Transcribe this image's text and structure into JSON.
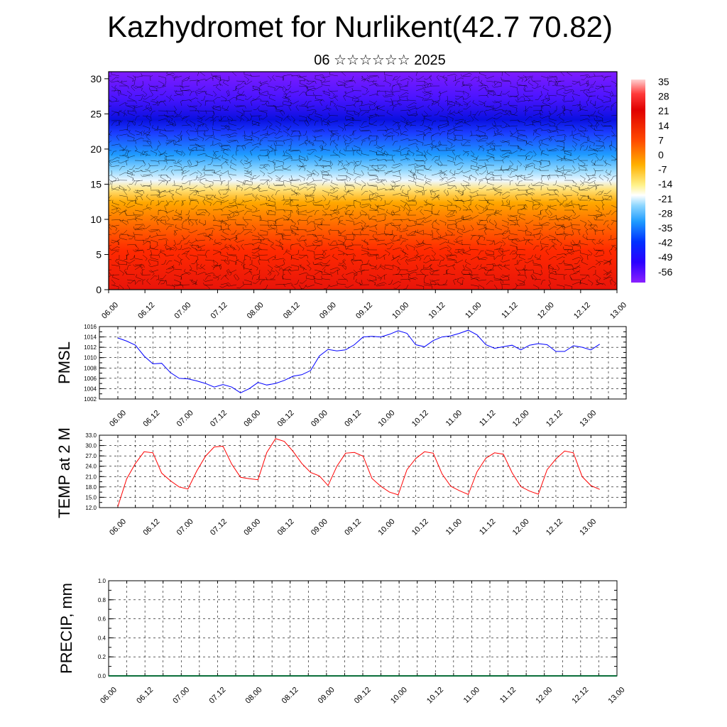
{
  "header": {
    "title": "Kazhydromet for Nurlikent(42.7 70.82)",
    "subtitle": "06 ☆☆☆☆☆☆ 2025"
  },
  "time_ticks": [
    "06.00",
    "06.12",
    "07.00",
    "07.12",
    "08.00",
    "08.12",
    "09.00",
    "09.12",
    "10.00",
    "10.12",
    "11.00",
    "11.12",
    "12.00",
    "12.12",
    "13.00"
  ],
  "chart_data": [
    {
      "type": "heatmap",
      "title": "",
      "variable": "temperature cross-section with wind barbs",
      "x": [
        "06.00",
        "06.12",
        "07.00",
        "07.12",
        "08.00",
        "08.12",
        "09.00",
        "09.12",
        "10.00",
        "10.12",
        "11.00",
        "11.12",
        "12.00",
        "12.12",
        "13.00"
      ],
      "ylabel": "",
      "ylim": [
        0,
        31
      ],
      "yticks": [
        0,
        5,
        10,
        15,
        20,
        25,
        30
      ],
      "colorbar_labels": [
        "35",
        "28",
        "21",
        "14",
        "7",
        "0",
        "-7",
        "-14",
        "-21",
        "-28",
        "-35",
        "-42",
        "-49",
        "-56"
      ],
      "colorbar_range": [
        -63,
        42
      ],
      "colormap": [
        "#7f00ff",
        "#2a00ff",
        "#0040ff",
        "#1e9bff",
        "#9fe2ff",
        "#ffffff",
        "#fff18a",
        "#ffb000",
        "#ff5a00",
        "#ff1a00",
        "#d40000",
        "#ff9a9a"
      ],
      "grid": false
    },
    {
      "type": "line",
      "ylabel": "PMSL",
      "ylim": [
        1002,
        1016
      ],
      "yticks": [
        "1002",
        "1004",
        "1006",
        "1008",
        "1010",
        "1012",
        "1014",
        "1016"
      ],
      "color": "#0000ff",
      "grid": true,
      "series": [
        {
          "x_hours": [
            0,
            3,
            6,
            9,
            12,
            15,
            18,
            21,
            24,
            27,
            30,
            33,
            36,
            39,
            42,
            45,
            48,
            51,
            54,
            57,
            60,
            63,
            66,
            69,
            72,
            75,
            78,
            81,
            84,
            87,
            90,
            93,
            96,
            99,
            102,
            105,
            108,
            111,
            114,
            117,
            120,
            123,
            126,
            129,
            132,
            135,
            138,
            141,
            144,
            147,
            150,
            153,
            156,
            159,
            162,
            165,
            168
          ],
          "values": [
            1013.8,
            1013.2,
            1012.4,
            1010.3,
            1008.8,
            1008.9,
            1007.1,
            1006.0,
            1005.9,
            1005.5,
            1005.0,
            1004.3,
            1004.8,
            1004.3,
            1003.2,
            1004.0,
            1005.2,
            1004.7,
            1005.0,
            1005.6,
            1006.4,
            1006.7,
            1007.5,
            1010.3,
            1011.6,
            1011.3,
            1011.5,
            1012.5,
            1014.0,
            1014.1,
            1014.0,
            1014.5,
            1015.2,
            1014.7,
            1012.5,
            1012.1,
            1013.3,
            1014.0,
            1014.2,
            1014.7,
            1015.3,
            1014.4,
            1012.5,
            1011.8,
            1012.1,
            1012.4,
            1011.5,
            1012.4,
            1012.7,
            1012.5,
            1011.2,
            1011.2,
            1012.3,
            1012.0,
            1011.5,
            1012.6,
            null
          ]
        }
      ]
    },
    {
      "type": "line",
      "ylabel": "TEMP at 2 M",
      "ylim": [
        12,
        33
      ],
      "yticks": [
        "12.0",
        "15.0",
        "18.0",
        "21.0",
        "24.0",
        "27.0",
        "30.0",
        "33.0"
      ],
      "color": "#ff0000",
      "grid": true,
      "series": [
        {
          "x_hours": [
            0,
            3,
            6,
            9,
            12,
            15,
            18,
            21,
            24,
            27,
            30,
            33,
            36,
            39,
            42,
            45,
            48,
            51,
            54,
            57,
            60,
            63,
            66,
            69,
            72,
            75,
            78,
            81,
            84,
            87,
            90,
            93,
            96,
            99,
            102,
            105,
            108,
            111,
            114,
            117,
            120,
            123,
            126,
            129,
            132,
            135,
            138,
            141,
            144,
            147,
            150,
            153,
            156,
            159,
            162,
            165
          ],
          "values": [
            12.3,
            20.3,
            24.8,
            28.2,
            27.9,
            22.0,
            19.8,
            18.0,
            17.4,
            22.6,
            26.9,
            29.6,
            29.8,
            24.6,
            20.8,
            20.4,
            20.1,
            28.0,
            32.0,
            31.2,
            28.3,
            24.8,
            22.2,
            21.2,
            18.4,
            24.0,
            27.8,
            28.0,
            26.9,
            20.5,
            18.2,
            16.5,
            15.7,
            23.0,
            26.2,
            28.2,
            27.8,
            21.8,
            18.2,
            16.9,
            15.8,
            22.4,
            26.3,
            27.9,
            27.5,
            22.1,
            18.1,
            16.8,
            15.9,
            23.0,
            26.1,
            28.4,
            27.9,
            21.0,
            18.4,
            17.3
          ]
        }
      ]
    },
    {
      "type": "bar",
      "ylabel": "PRECIP, mm",
      "ylim": [
        0,
        1.0
      ],
      "yticks": [
        "0.0",
        "0.2",
        "0.4",
        "0.6",
        "0.8",
        "1.0"
      ],
      "grid": true,
      "values_mm": "all 0.0"
    }
  ]
}
